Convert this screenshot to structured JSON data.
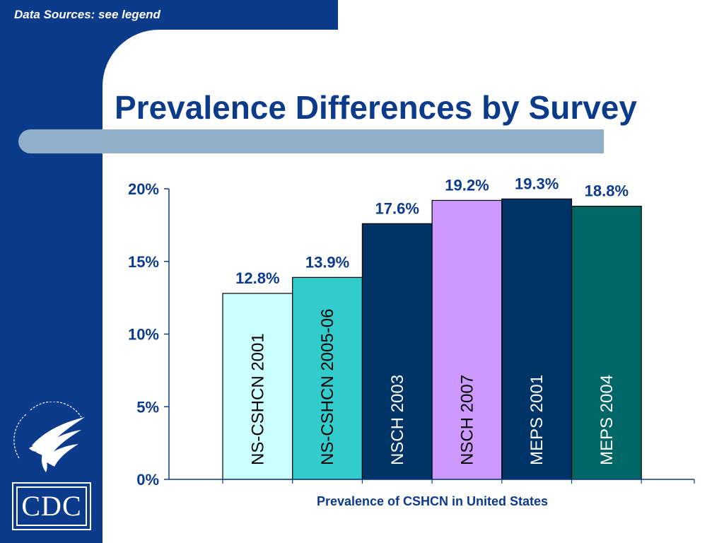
{
  "header": {
    "source_note": "Data Sources: see legend",
    "title": "Prevalence Differences by Survey"
  },
  "colors": {
    "brand_blue": "#0d3b8c",
    "title_bar": "#8fb0c8"
  },
  "logos": {
    "hhs": "hhs-eagle-seal",
    "cdc": "CDC"
  },
  "chart_data": {
    "type": "bar",
    "title": "",
    "xlabel": "Prevalence of CSHCN in United States",
    "ylabel": "",
    "ylim": [
      0,
      20
    ],
    "yticks": [
      "0%",
      "5%",
      "10%",
      "15%",
      "20%"
    ],
    "grid": false,
    "legend": "none",
    "categories": [
      "NS-CSHCN 2001",
      "NS-CSHCN 2005-06",
      "NSCH 2003",
      "NSCH 2007",
      "MEPS 2001",
      "MEPS 2004"
    ],
    "values": [
      12.8,
      13.9,
      17.6,
      19.2,
      19.3,
      18.8
    ],
    "data_labels": [
      "12.8%",
      "13.9%",
      "17.6%",
      "19.2%",
      "19.3%",
      "18.8%"
    ],
    "bar_colors": [
      "#ccffff",
      "#33cccc",
      "#003366",
      "#cc99ff",
      "#003366",
      "#006666"
    ],
    "category_label_colors": [
      "#000000",
      "#000000",
      "#ffffff",
      "#000000",
      "#ffffff",
      "#ffffff"
    ]
  }
}
